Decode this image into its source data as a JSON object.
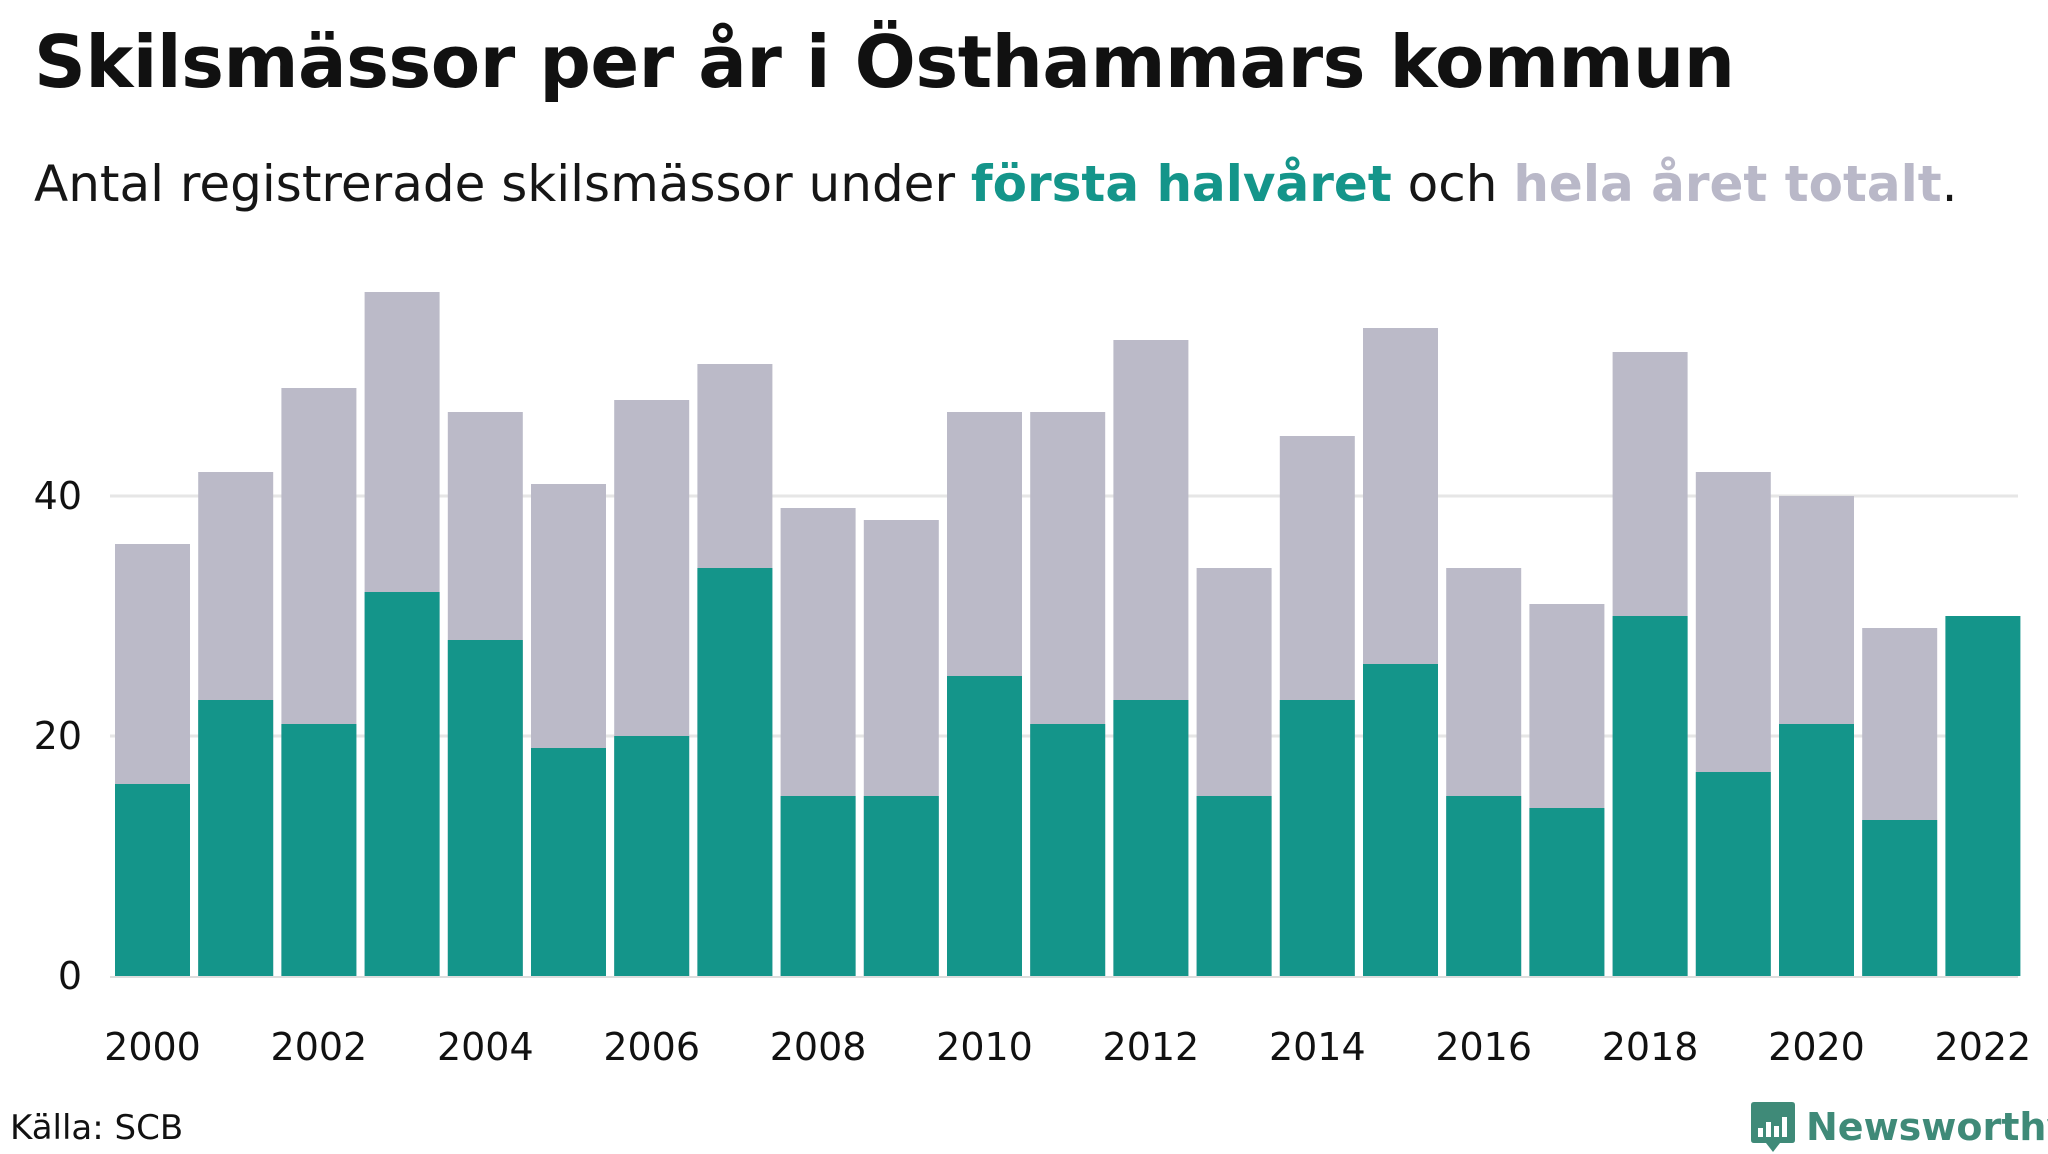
{
  "header": {
    "title": "Skilsmässor per år i Östhammars kommun",
    "subtitle_pre": "Antal registrerade skilsmässor under ",
    "subtitle_hl1": "första halvåret",
    "subtitle_mid": " och ",
    "subtitle_hl2": "hela året totalt",
    "subtitle_post": "."
  },
  "footer": {
    "source": "Källa: SCB",
    "brand": "Newsworthy",
    "brand_icon": "newsworthy-logo-icon"
  },
  "colors": {
    "first_half": "#14958a",
    "full_year": "#bbbac8",
    "grid": "#e6e6e6",
    "brand": "#3f8a78"
  },
  "chart_data": {
    "type": "bar",
    "layout": "overlapping",
    "categories": [
      2000,
      2001,
      2002,
      2003,
      2004,
      2005,
      2006,
      2007,
      2008,
      2009,
      2010,
      2011,
      2012,
      2013,
      2014,
      2015,
      2016,
      2017,
      2018,
      2019,
      2020,
      2021,
      2022
    ],
    "series": [
      {
        "name": "hela året totalt",
        "color": "#bbbac8",
        "values": [
          36,
          42,
          49,
          57,
          47,
          41,
          48,
          51,
          39,
          38,
          47,
          47,
          53,
          34,
          45,
          54,
          34,
          31,
          52,
          42,
          40,
          29,
          null
        ]
      },
      {
        "name": "första halvåret",
        "color": "#14958a",
        "values": [
          16,
          23,
          21,
          32,
          28,
          19,
          20,
          34,
          15,
          15,
          25,
          21,
          23,
          15,
          23,
          26,
          15,
          14,
          30,
          17,
          21,
          13,
          30
        ]
      }
    ],
    "x_tick_labels": [
      "2000",
      "2002",
      "2004",
      "2006",
      "2008",
      "2010",
      "2012",
      "2014",
      "2016",
      "2018",
      "2020",
      "2022"
    ],
    "y_ticks": [
      0,
      20,
      40
    ],
    "ylim": [
      0,
      57
    ],
    "grid": true,
    "xlabel": "",
    "ylabel": ""
  }
}
